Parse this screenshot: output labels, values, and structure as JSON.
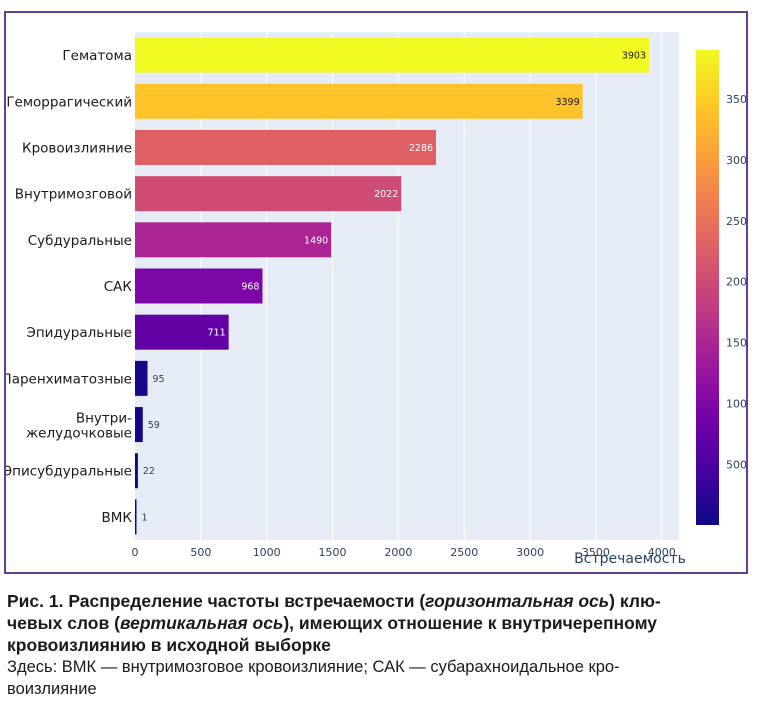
{
  "chart_data": {
    "type": "bar",
    "orientation": "horizontal",
    "categories": [
      "Гематома",
      "Геморрагический",
      "Кровоизлияние",
      "Внутримозговой",
      "Субдуральные",
      "САК",
      "Эпидуральные",
      "Паренхиматозные",
      "Внутри-\nжелудочковые",
      "Эписубдуральные",
      "ВМК"
    ],
    "values": [
      3903,
      3399,
      2286,
      2022,
      1490,
      968,
      711,
      95,
      59,
      22,
      1
    ],
    "data_labels": [
      "3903",
      "3399",
      "2286",
      "2022",
      "1490",
      "968",
      "711",
      "95",
      "59",
      "22",
      "1"
    ],
    "xlabel": "Встречаемость",
    "ylabel": "",
    "xlim": [
      0,
      4100
    ],
    "x_ticks": [
      0,
      500,
      1000,
      1500,
      2000,
      2500,
      3000,
      3500,
      4000
    ],
    "x_tick_labels": [
      "0",
      "500",
      "1000",
      "1500",
      "2000",
      "2500",
      "3000",
      "3500",
      "4000"
    ],
    "colorscale": "plasma",
    "colorbar": {
      "range": [
        1,
        3903
      ],
      "ticks": [
        500,
        1000,
        1500,
        2000,
        2500,
        3000,
        3500
      ],
      "tick_labels": [
        "500",
        "1000",
        "1500",
        "2000",
        "2500",
        "3000",
        "3500"
      ]
    },
    "grid": true,
    "plot_background": "#e5ecf6"
  },
  "caption": {
    "title_prefix": "Рис. 1.",
    "title_a": " Распределение частоты встречаемости (",
    "title_i1": "горизонтальная ось",
    "title_b": ") клю-",
    "title_c": "чевых слов (",
    "title_i2": "вертикальная ось",
    "title_d": "), имеющих отношение к внутричерепному",
    "title_e": "кровоизлиянию в исходной выборке",
    "note_1": "Здесь: ВМК — внутримозговое кровоизлияние; САК — субарахноидальное кро-",
    "note_2": "воизлияние"
  }
}
